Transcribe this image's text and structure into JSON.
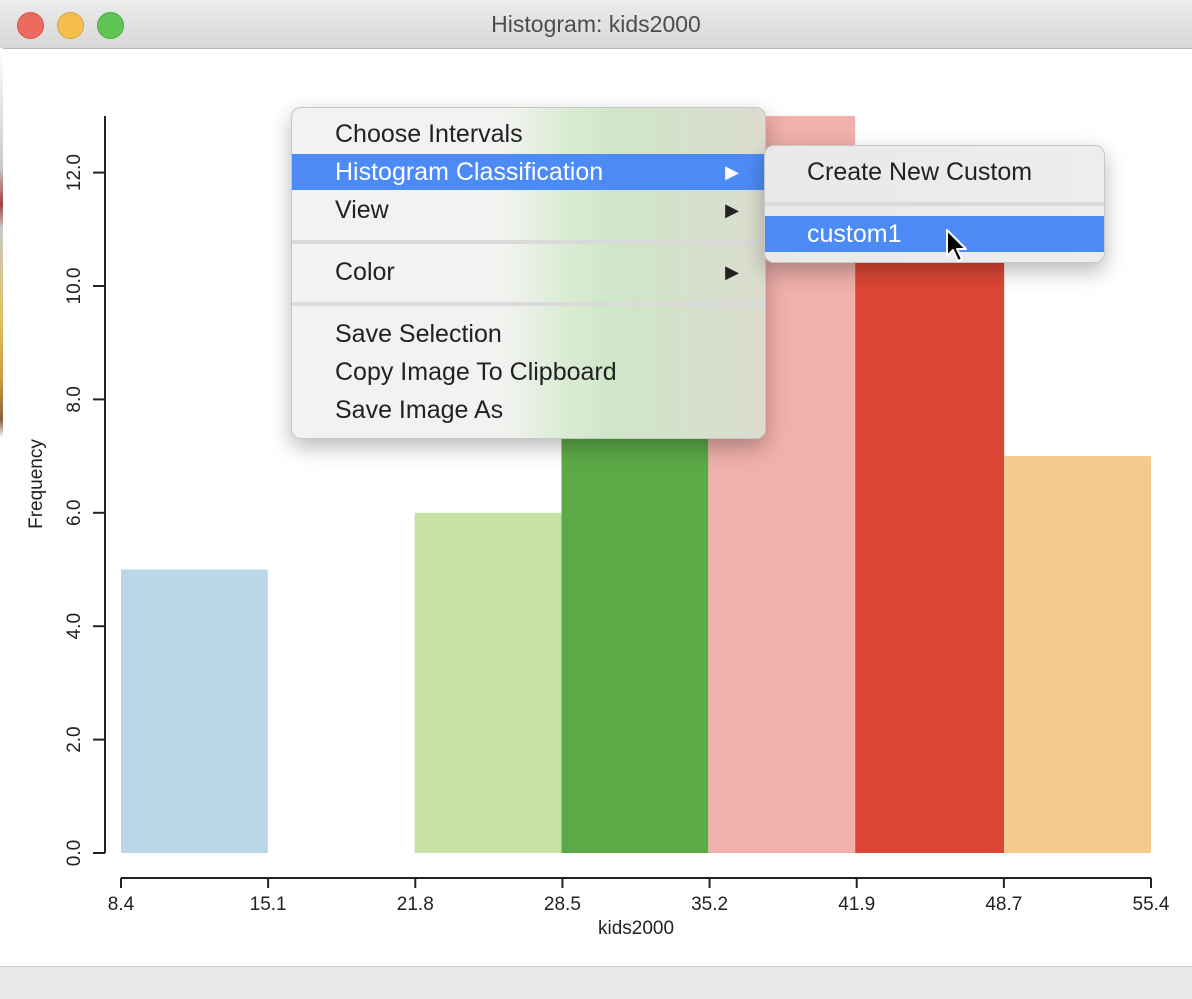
{
  "window": {
    "title": "Histogram: kids2000"
  },
  "chart_data": {
    "type": "bar",
    "xlabel": "kids2000",
    "ylabel": "Frequency",
    "x_ticks": [
      "8.4",
      "15.1",
      "21.8",
      "28.5",
      "35.2",
      "41.9",
      "48.7",
      "55.4"
    ],
    "y_ticks": [
      "0.0",
      "2.0",
      "4.0",
      "6.0",
      "8.0",
      "10.0",
      "12.0"
    ],
    "ylim": [
      0,
      13
    ],
    "bins": [
      {
        "from": 8.4,
        "to": 15.1,
        "value": 5,
        "color": "#bad6e7"
      },
      {
        "from": 15.1,
        "to": 21.8,
        "value": 0,
        "color": "#ffffff"
      },
      {
        "from": 21.8,
        "to": 28.5,
        "value": 6,
        "color": "#c6e2a6"
      },
      {
        "from": 28.5,
        "to": 35.2,
        "value": 8,
        "color": "#5ca947"
      },
      {
        "from": 35.2,
        "to": 41.9,
        "value": 13,
        "color": "#f0b0ab"
      },
      {
        "from": 41.9,
        "to": 48.7,
        "value": 11,
        "color": "#dc4634"
      },
      {
        "from": 48.7,
        "to": 55.4,
        "value": 7,
        "color": "#f5cb8d"
      }
    ]
  },
  "context_menu": {
    "items": [
      {
        "label": "Choose Intervals",
        "arrow": ""
      },
      {
        "label": "Histogram Classification",
        "arrow": "▶"
      },
      {
        "label": "View",
        "arrow": "▶"
      },
      {
        "label": "Color",
        "arrow": "▶"
      },
      {
        "label": "Save Selection",
        "arrow": ""
      },
      {
        "label": "Copy Image To Clipboard",
        "arrow": ""
      },
      {
        "label": "Save Image As",
        "arrow": ""
      }
    ],
    "highlighted": "Histogram Classification"
  },
  "submenu": {
    "items": [
      {
        "label": "Create New Custom"
      },
      {
        "label": "custom1"
      }
    ],
    "highlighted": "custom1"
  },
  "colors": {
    "menu_highlight": "#4c8bf5"
  },
  "icons": [
    "close-button",
    "minimize-button",
    "maximize-button",
    "submenu-arrow-icon",
    "mouse-pointer-icon"
  ]
}
